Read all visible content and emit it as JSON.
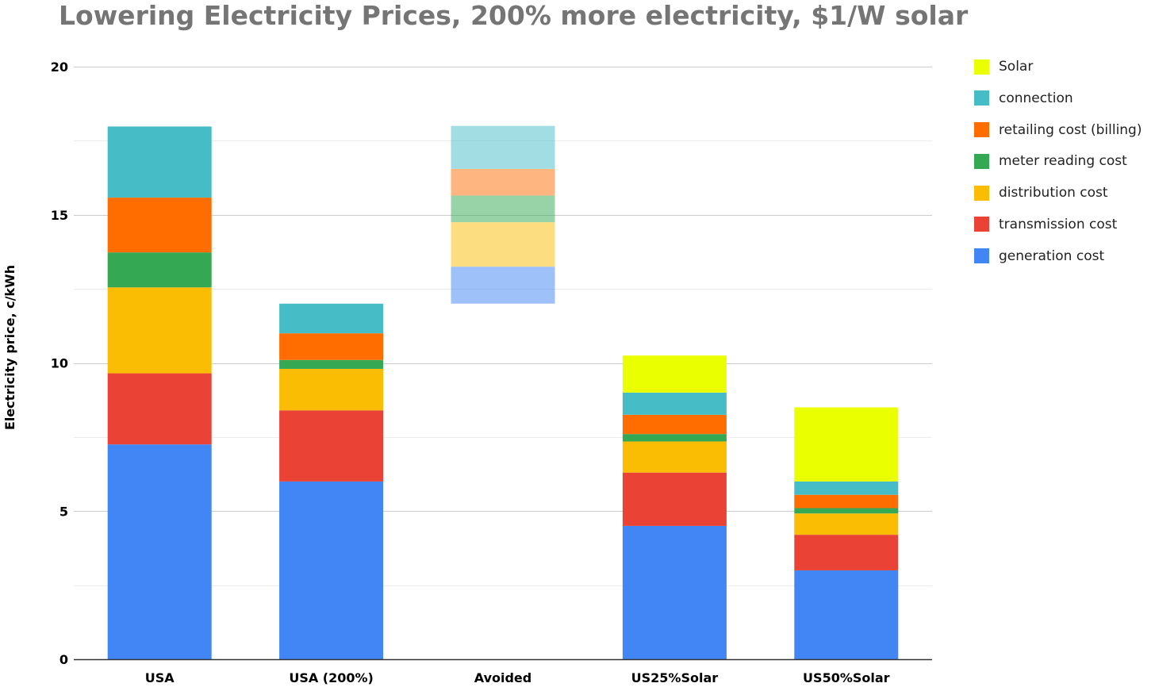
{
  "chart_data": {
    "type": "bar",
    "stacked": true,
    "title": "Lowering Electricity Prices, 200% more electricity, $1/W solar",
    "xlabel": "",
    "ylabel": "Electricity price, c/kWh",
    "ylim": [
      0,
      20
    ],
    "yticks": [
      0,
      5,
      10,
      15,
      20
    ],
    "ytick_labels": [
      "0",
      "5",
      "10",
      "15",
      "20"
    ],
    "grid": true,
    "legend_position": "right",
    "categories": [
      "USA",
      "USA (200%)",
      "Avoided",
      "US25%Solar",
      "US50%Solar"
    ],
    "category_bases": [
      0,
      0,
      12.0,
      0,
      0
    ],
    "faded_categories": [
      "Avoided"
    ],
    "series": [
      {
        "name": "generation cost",
        "color": "#4285f4",
        "values": [
          7.25,
          6.0,
          1.25,
          4.5,
          3.0
        ]
      },
      {
        "name": "transmission cost",
        "color": "#ea4335",
        "values": [
          2.4,
          2.4,
          0,
          1.8,
          1.2
        ]
      },
      {
        "name": "distribution cost",
        "color": "#fbbc04",
        "values": [
          2.9,
          1.4,
          1.5,
          1.05,
          0.72
        ]
      },
      {
        "name": "meter reading cost",
        "color": "#34a853",
        "values": [
          1.18,
          0.3,
          0.9,
          0.25,
          0.18
        ]
      },
      {
        "name": "retailing cost (billing)",
        "color": "#ff6d01",
        "values": [
          1.85,
          0.9,
          0.9,
          0.65,
          0.45
        ]
      },
      {
        "name": "connection",
        "color": "#46bdc6",
        "values": [
          2.4,
          1.0,
          1.45,
          0.75,
          0.45
        ]
      },
      {
        "name": "Solar",
        "color": "#eaff00",
        "values": [
          0,
          0,
          0,
          1.25,
          2.5
        ]
      }
    ],
    "legend_order": [
      "Solar",
      "connection",
      "retailing cost (billing)",
      "meter reading cost",
      "distribution cost",
      "transmission cost",
      "generation cost"
    ]
  }
}
